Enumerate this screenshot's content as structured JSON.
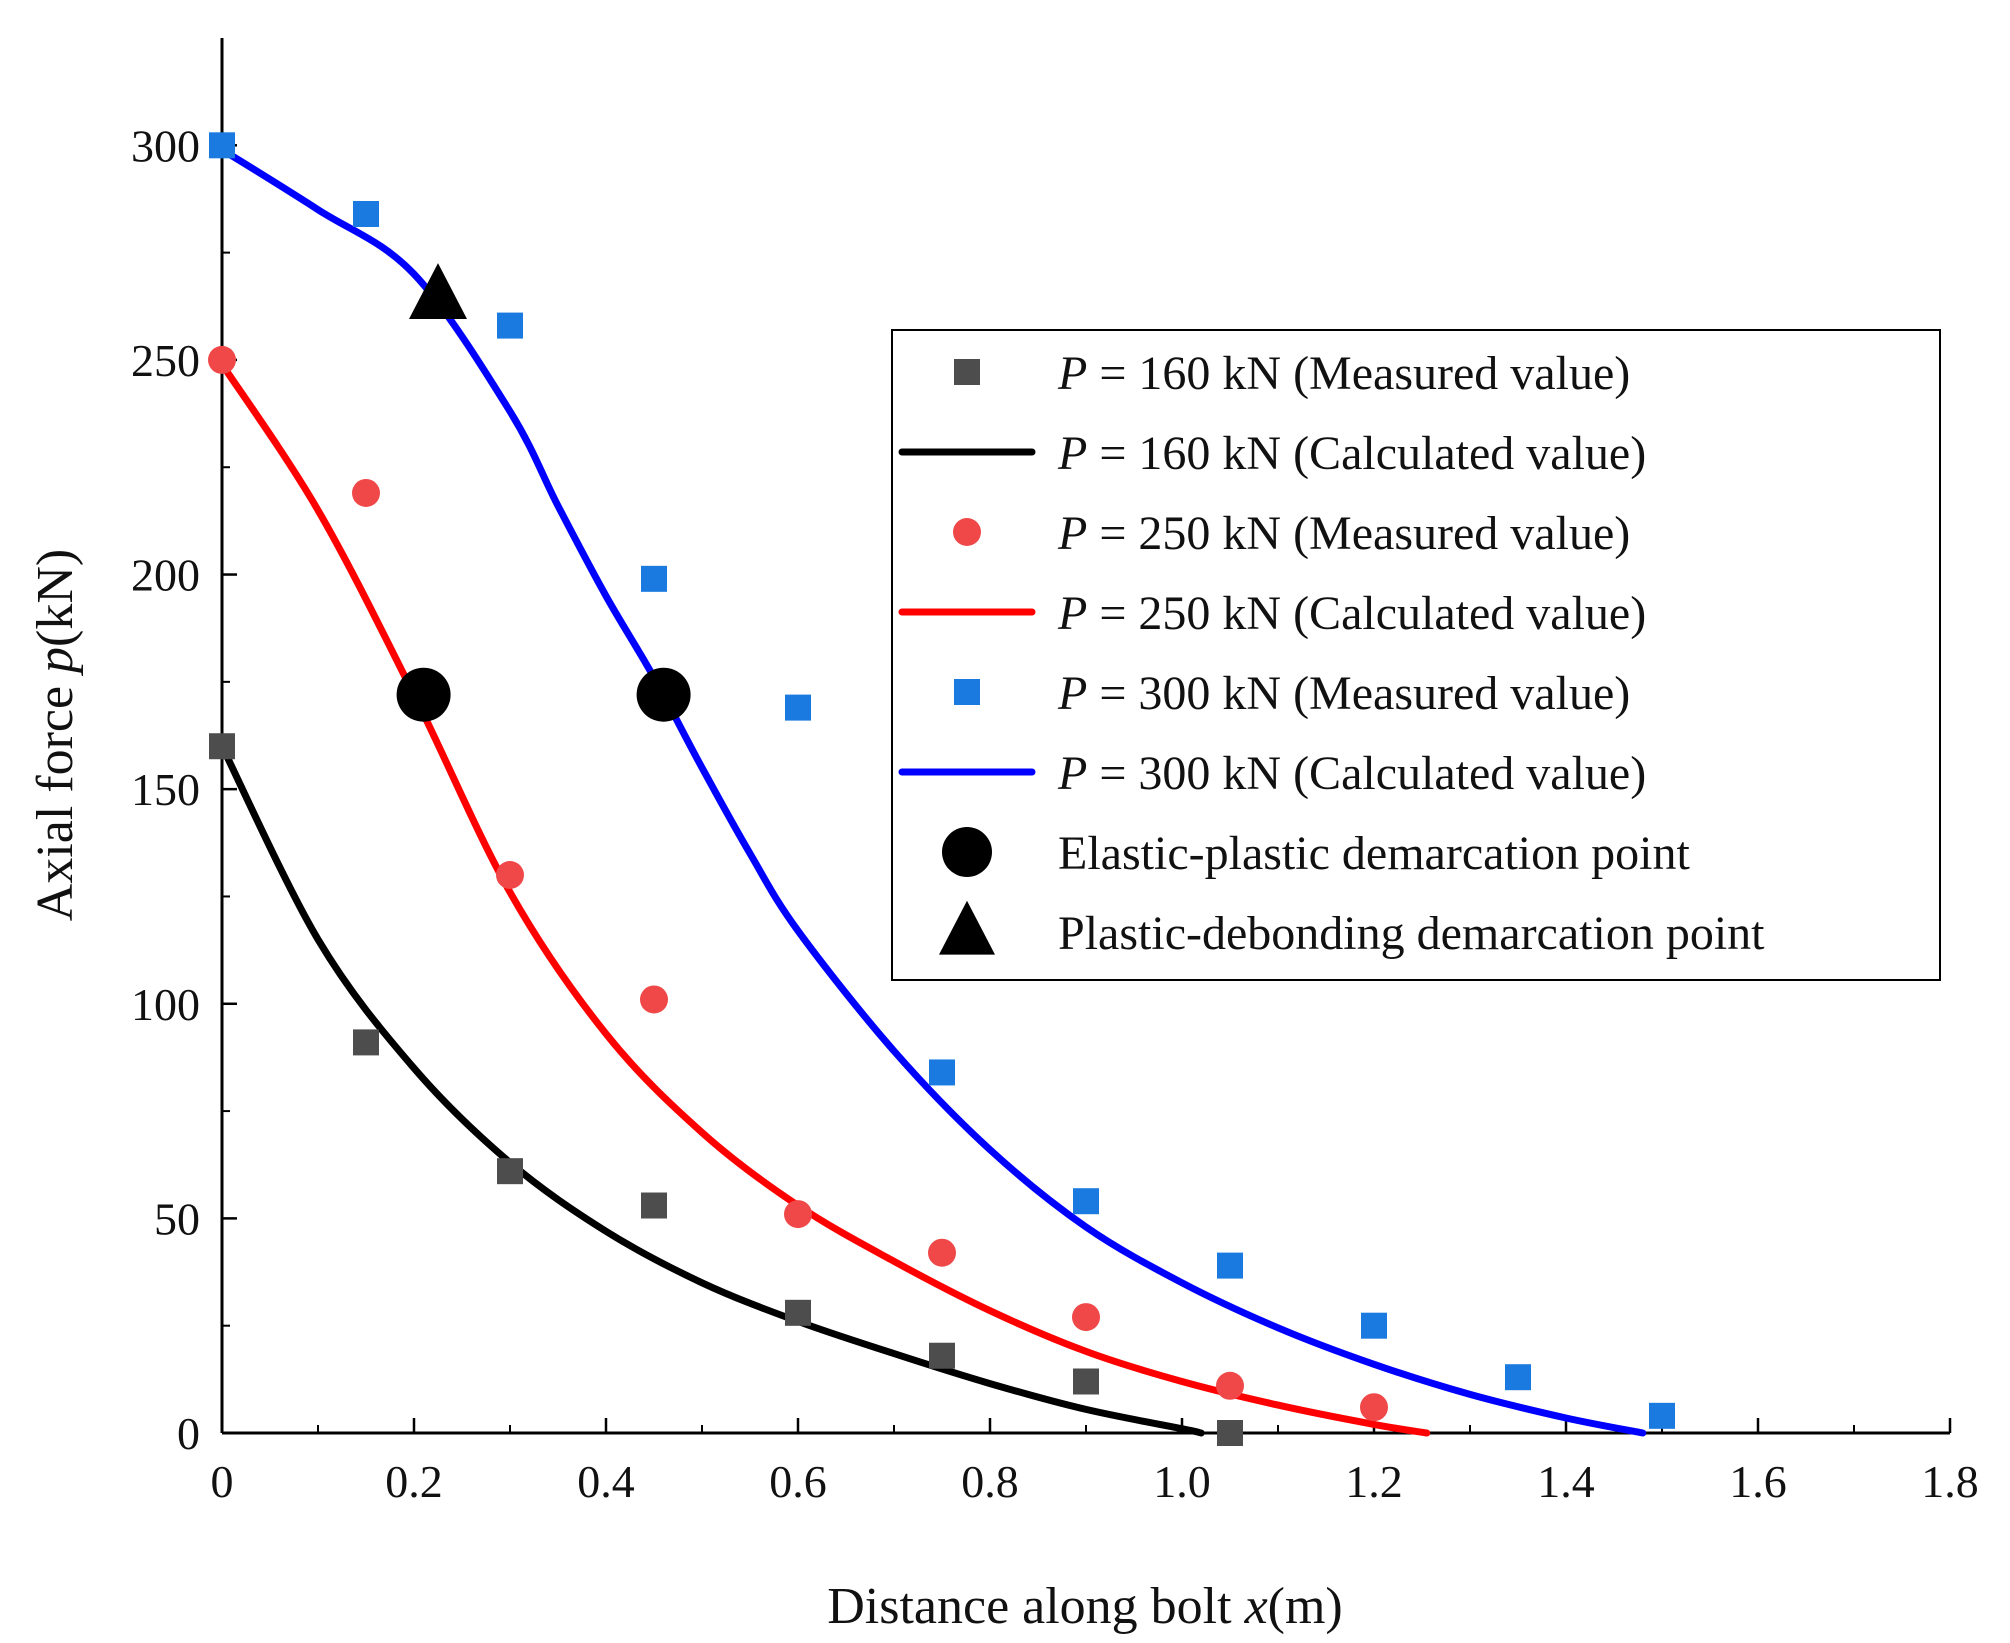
{
  "chart_data": {
    "type": "scatter",
    "title": "",
    "xlabel": "Distance along bolt ",
    "xlabel_var": "x",
    "xlabel_unit": "(m)",
    "ylabel": "Axial force ",
    "ylabel_var": "p",
    "ylabel_unit": "(kN)",
    "xlim": [
      0,
      1.8
    ],
    "ylim": [
      0,
      325
    ],
    "x_ticks": [
      0,
      0.2,
      0.4,
      0.6,
      0.8,
      1.0,
      1.2,
      1.4,
      1.6,
      1.8
    ],
    "x_tick_labels": [
      "0",
      "0.2",
      "0.4",
      "0.6",
      "0.8",
      "1.0",
      "1.2",
      "1.4",
      "1.6",
      "1.8"
    ],
    "y_ticks": [
      0,
      50,
      100,
      150,
      200,
      250,
      300
    ],
    "y_tick_labels": [
      "0",
      "50",
      "100",
      "150",
      "200",
      "250",
      "300"
    ],
    "grid": false,
    "legend_position": "right",
    "series": [
      {
        "name": "P = 160 kN (Measured value)",
        "legend_prefix": "P",
        "legend_suffix": " = 160 kN (Measured value)",
        "kind": "scatter",
        "marker": "square",
        "color": "#4d4d4d",
        "x": [
          0,
          0.15,
          0.3,
          0.45,
          0.6,
          0.75,
          0.9,
          1.05
        ],
        "y": [
          160,
          91,
          61,
          53,
          28,
          18,
          12,
          0
        ]
      },
      {
        "name": "P = 160 kN (Calculated value)",
        "legend_prefix": "P",
        "legend_suffix": " = 160 kN (Calculated value)",
        "kind": "line",
        "color": "#000000",
        "x": [
          0,
          0.1,
          0.2,
          0.3,
          0.4,
          0.5,
          0.6,
          0.7,
          0.8,
          0.9,
          1.0,
          1.02
        ],
        "y": [
          160,
          115,
          85,
          63,
          47,
          35,
          26,
          18.5,
          11.5,
          5.5,
          1,
          0
        ]
      },
      {
        "name": "P = 250 kN (Measured value)",
        "legend_prefix": "P",
        "legend_suffix": " = 250 kN (Measured value)",
        "kind": "scatter",
        "marker": "circle",
        "color": "#f04848",
        "x": [
          0,
          0.15,
          0.3,
          0.45,
          0.6,
          0.75,
          0.9,
          1.05,
          1.2
        ],
        "y": [
          250,
          219,
          130,
          101,
          51,
          42,
          27,
          11,
          6
        ]
      },
      {
        "name": "P = 250 kN (Calculated value)",
        "legend_prefix": "P",
        "legend_suffix": " = 250 kN (Calculated value)",
        "kind": "line",
        "color": "#ff0000",
        "x": [
          0,
          0.1,
          0.2,
          0.3,
          0.4,
          0.5,
          0.6,
          0.7,
          0.8,
          0.9,
          1.0,
          1.1,
          1.2,
          1.255
        ],
        "y": [
          249,
          215,
          172,
          126,
          93,
          70,
          53,
          40,
          28.5,
          19,
          12,
          6.5,
          2,
          0
        ]
      },
      {
        "name": "P = 300 kN (Measured value)",
        "legend_prefix": "P",
        "legend_suffix": " = 300 kN (Measured value)",
        "kind": "scatter",
        "marker": "square",
        "color": "#1a7ae0",
        "x": [
          0,
          0.15,
          0.3,
          0.45,
          0.6,
          0.75,
          0.9,
          1.05,
          1.2,
          1.35,
          1.5
        ],
        "y": [
          300,
          284,
          258,
          199,
          169,
          84,
          54,
          39,
          25,
          13,
          4
        ]
      },
      {
        "name": "P = 300 kN (Calculated value)",
        "legend_prefix": "P",
        "legend_suffix": " = 300 kN (Calculated value)",
        "kind": "line",
        "color": "#0000ff",
        "x": [
          0,
          0.1,
          0.2,
          0.3,
          0.35,
          0.4,
          0.45,
          0.5,
          0.55,
          0.6,
          0.7,
          0.8,
          0.9,
          1.0,
          1.1,
          1.2,
          1.3,
          1.4,
          1.48
        ],
        "y": [
          299,
          285,
          270,
          238,
          216,
          195,
          176,
          155,
          135,
          117,
          89,
          66,
          48,
          35,
          24.5,
          16,
          9,
          3.5,
          0
        ]
      }
    ],
    "points": [
      {
        "name": "Elastic-plastic demarcation point",
        "marker": "circle",
        "color": "#000000",
        "x": [
          0.21,
          0.46
        ],
        "y": [
          172,
          172
        ]
      },
      {
        "name": "Plastic-debonding demarcation point",
        "marker": "triangle",
        "color": "#000000",
        "x": [
          0.225
        ],
        "y": [
          265
        ]
      }
    ]
  }
}
